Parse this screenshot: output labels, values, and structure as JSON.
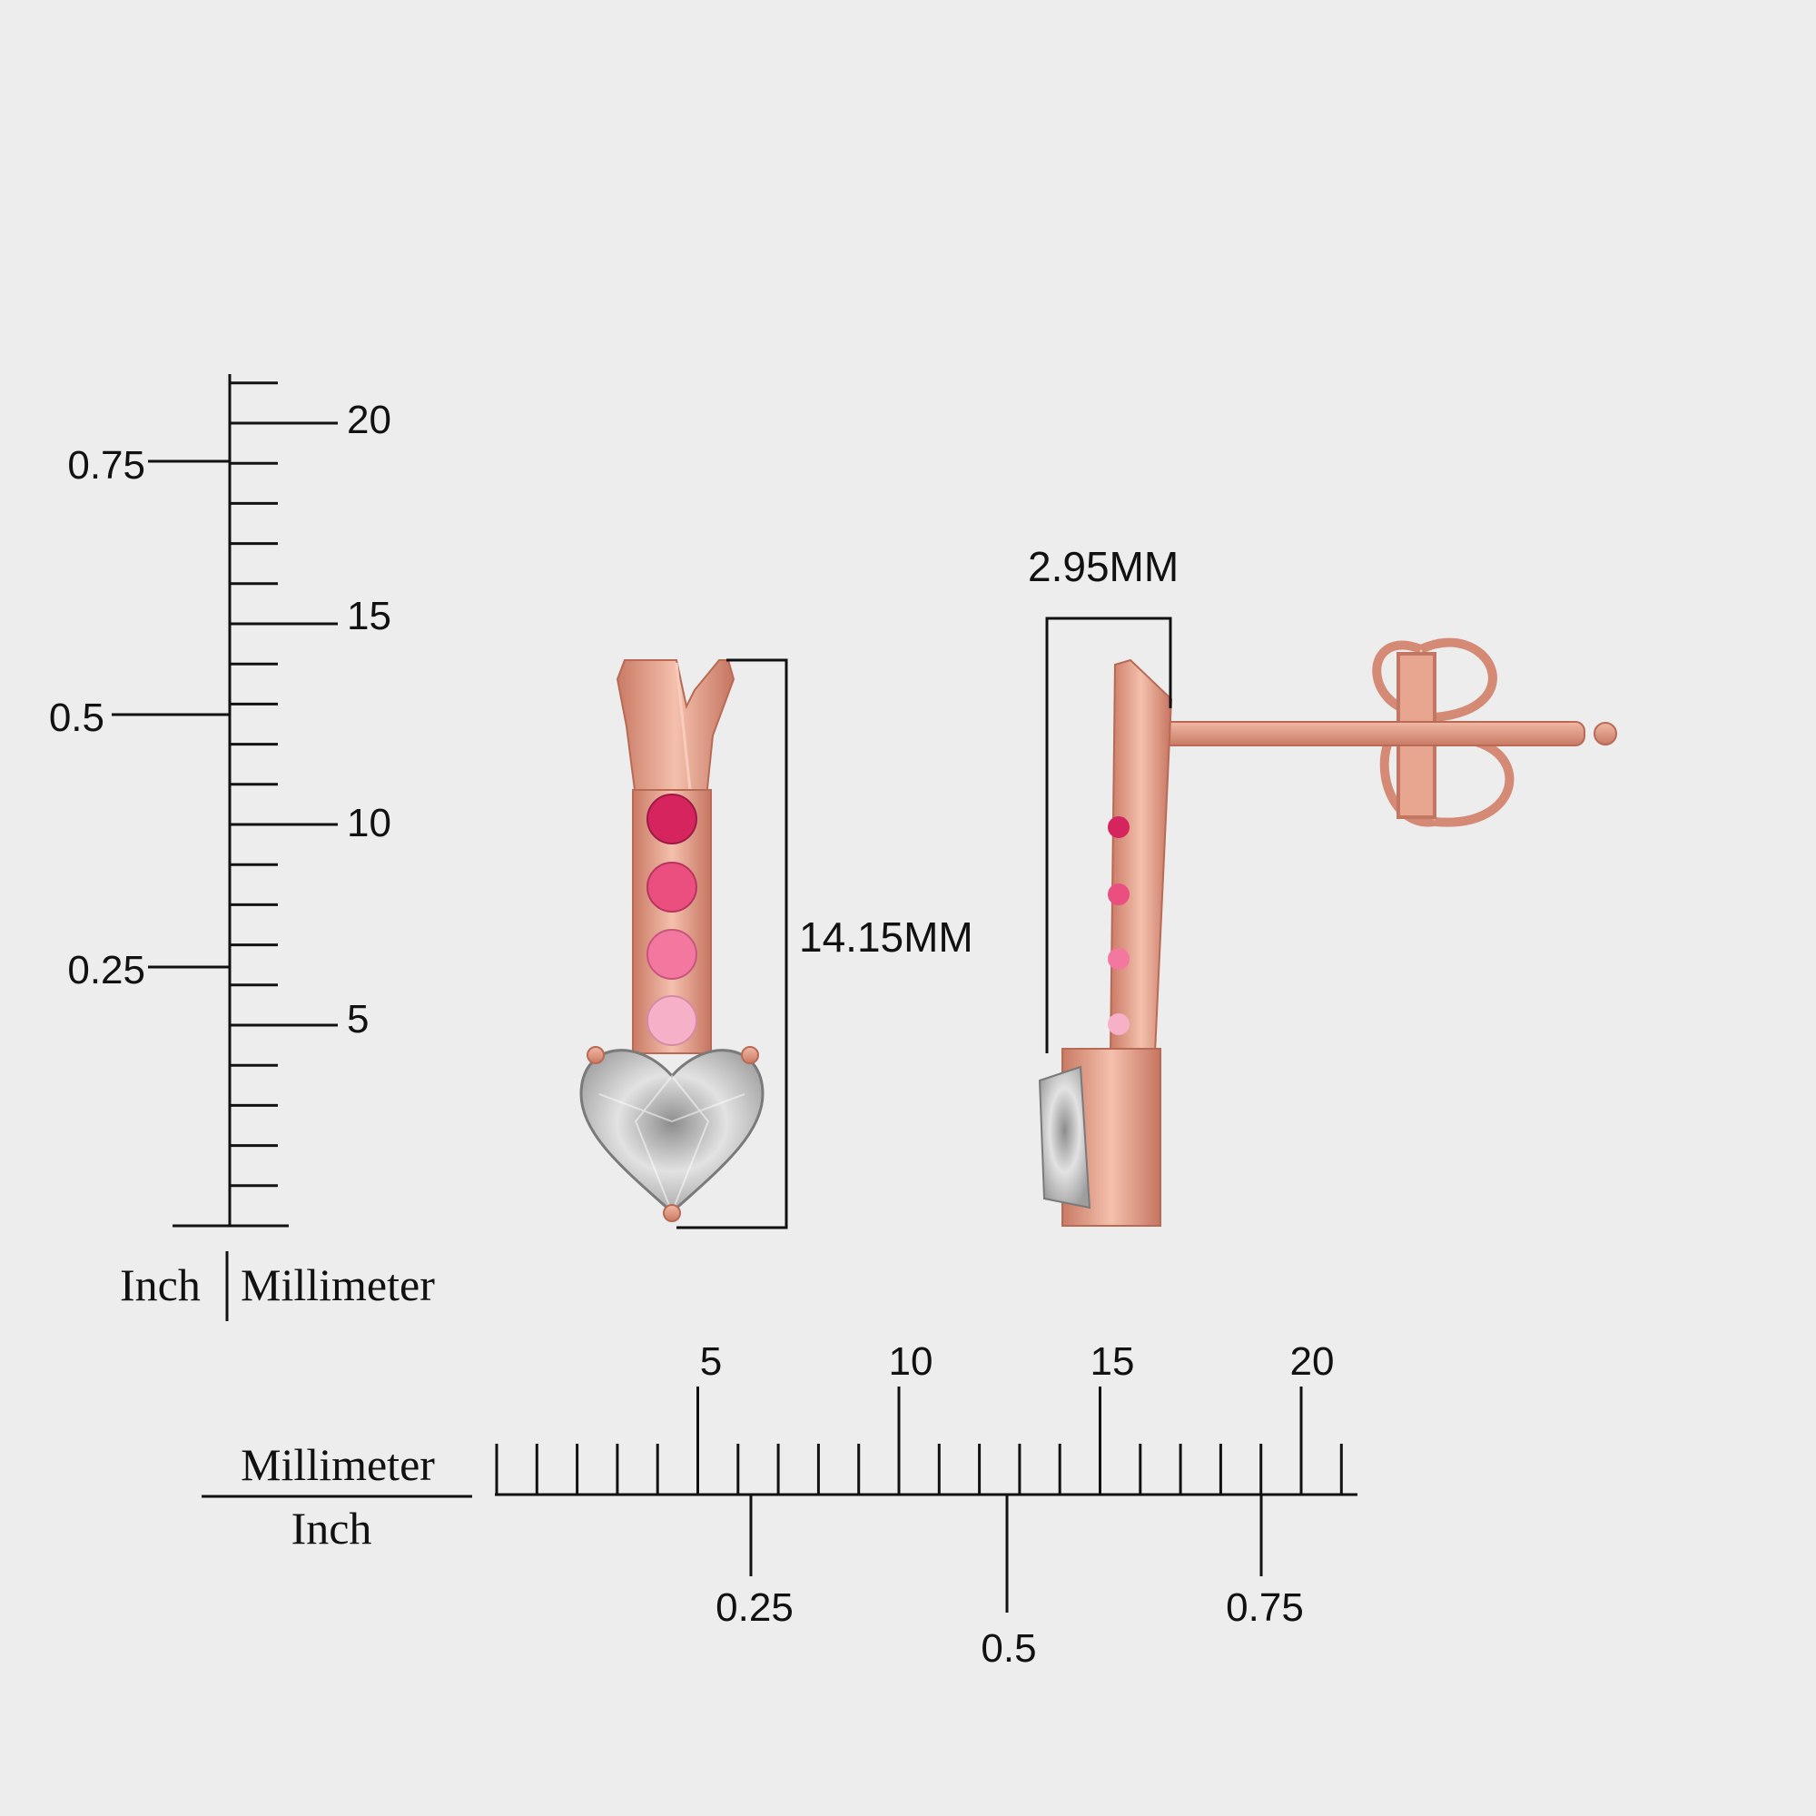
{
  "vertical_ruler": {
    "mm_labels": [
      "5",
      "10",
      "15",
      "20"
    ],
    "inch_labels": [
      "0.25",
      "0.5",
      "0.75"
    ],
    "unit_inch": "Inch",
    "unit_mm": "Millimeter"
  },
  "horizontal_ruler": {
    "mm_labels": [
      "5",
      "10",
      "15",
      "20"
    ],
    "inch_labels": [
      "0.25",
      "0.5",
      "0.75"
    ],
    "unit_mm": "Millimeter",
    "unit_inch": "Inch"
  },
  "dimensions": {
    "length": "14.15MM",
    "width": "2.95MM"
  },
  "colors": {
    "rose_gold": "#e8a590",
    "rose_gold_dark": "#b86a55",
    "stone_1": "#d6245e",
    "stone_2": "#ea4f80",
    "stone_3": "#f2789f",
    "stone_4": "#f6b1c8",
    "diamond": "#c9c9c9",
    "background": "#ededed"
  }
}
